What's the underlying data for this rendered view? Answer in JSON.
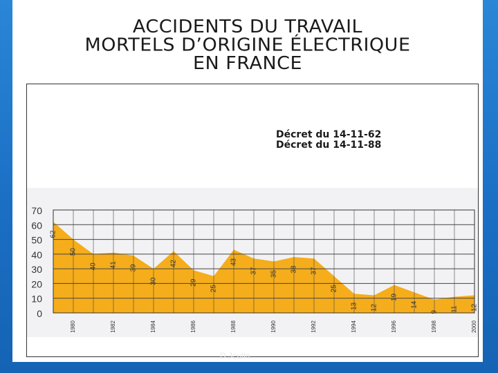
{
  "slide": {
    "title_lines": [
      "ACCIDENTS DU TRAVAIL",
      "MORTELS D’ORIGINE ÉLECTRIQUE",
      "EN FRANCE"
    ],
    "decrees": [
      "Décret du 14-11-62",
      "Décret du 14-11-88"
    ],
    "footer": "D.Jeulin"
  },
  "chart_data": {
    "type": "area",
    "x": [
      1979,
      1980,
      1981,
      1982,
      1983,
      1984,
      1985,
      1986,
      1987,
      1988,
      1989,
      1990,
      1991,
      1992,
      1993,
      1994,
      1995,
      1996,
      1997,
      1998,
      1999,
      2000
    ],
    "values": [
      62,
      50,
      40,
      41,
      39,
      30,
      42,
      29,
      25,
      43,
      37,
      35,
      38,
      37,
      25,
      13,
      12,
      19,
      14,
      9,
      11,
      12
    ],
    "x_tick_labels": [
      {
        "x": 1980,
        "label": "1980"
      },
      {
        "x": 1982,
        "label": "1982"
      },
      {
        "x": 1984,
        "label": "1984"
      },
      {
        "x": 1986,
        "label": "1986"
      },
      {
        "x": 1988,
        "label": "1988"
      },
      {
        "x": 1990,
        "label": "1990"
      },
      {
        "x": 1992,
        "label": "1992"
      },
      {
        "x": 1994,
        "label": "1994"
      },
      {
        "x": 1996,
        "label": "1996"
      },
      {
        "x": 1998,
        "label": "1998"
      },
      {
        "x": 2000,
        "label": "2000"
      }
    ],
    "y_ticks": [
      0,
      10,
      20,
      30,
      40,
      50,
      60,
      70
    ],
    "ylim": [
      0,
      70
    ],
    "grid": true,
    "colors": {
      "area": "#f5ad1c",
      "grid": "#444444",
      "panel": "#f2f2f4"
    }
  }
}
